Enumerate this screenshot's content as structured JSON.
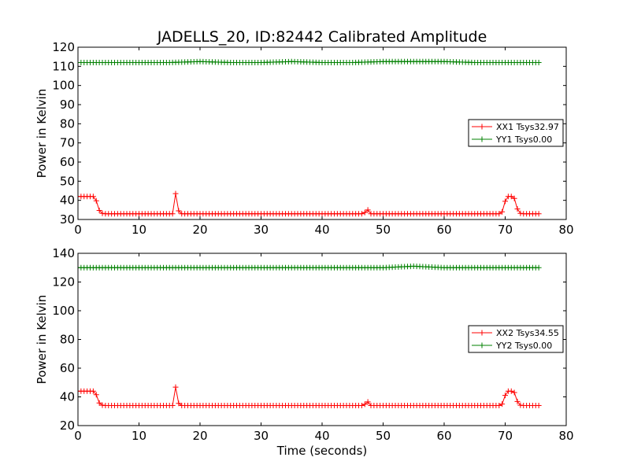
{
  "chart_data": [
    {
      "type": "line",
      "title": "JADELLS_20, ID:82442 Calibrated Amplitude",
      "xlabel": "",
      "ylabel": "Power in Kelvin",
      "xlim": [
        0,
        80
      ],
      "ylim": [
        30,
        120
      ],
      "xticks": [
        0,
        10,
        20,
        30,
        40,
        50,
        60,
        70,
        80
      ],
      "yticks": [
        30,
        40,
        50,
        60,
        70,
        80,
        90,
        100,
        110,
        120
      ],
      "grid": false,
      "legend_position": "right",
      "marker": "+",
      "series": [
        {
          "name": "XX1 Tsys32.97",
          "color": "#ff0000",
          "points": [
            [
              0,
              42
            ],
            [
              2.5,
              42
            ],
            [
              2.9,
              41
            ],
            [
              3.3,
              36
            ],
            [
              3.7,
              33.5
            ],
            [
              4.2,
              33
            ],
            [
              15.5,
              33
            ],
            [
              15.9,
              46
            ],
            [
              16.3,
              36
            ],
            [
              16.7,
              33
            ],
            [
              46.9,
              33
            ],
            [
              47.2,
              35
            ],
            [
              47.5,
              35
            ],
            [
              47.9,
              33
            ],
            [
              69.4,
              33
            ],
            [
              69.8,
              37
            ],
            [
              70.2,
              42
            ],
            [
              71.3,
              42
            ],
            [
              71.7,
              40
            ],
            [
              72.1,
              34
            ],
            [
              72.6,
              33
            ],
            [
              75.6,
              33
            ]
          ]
        },
        {
          "name": "YY1 Tsys0.00",
          "color": "#008000",
          "points": [
            [
              0,
              112
            ],
            [
              5,
              112
            ],
            [
              10,
              112
            ],
            [
              15,
              112
            ],
            [
              20,
              112.5
            ],
            [
              25,
              112
            ],
            [
              30,
              112
            ],
            [
              35,
              112.5
            ],
            [
              40,
              112
            ],
            [
              45,
              112
            ],
            [
              50,
              112.5
            ],
            [
              55,
              112.5
            ],
            [
              60,
              112.5
            ],
            [
              65,
              112
            ],
            [
              70,
              112
            ],
            [
              75.6,
              112
            ]
          ]
        }
      ]
    },
    {
      "type": "line",
      "title": "",
      "xlabel": "Time (seconds)",
      "ylabel": "Power in Kelvin",
      "xlim": [
        0,
        80
      ],
      "ylim": [
        20,
        140
      ],
      "xticks": [
        0,
        10,
        20,
        30,
        40,
        50,
        60,
        70,
        80
      ],
      "yticks": [
        20,
        40,
        60,
        80,
        100,
        120,
        140
      ],
      "grid": false,
      "legend_position": "right",
      "marker": "+",
      "series": [
        {
          "name": "XX2 Tsys34.55",
          "color": "#ff0000",
          "points": [
            [
              0,
              44
            ],
            [
              2.5,
              44
            ],
            [
              2.9,
              43
            ],
            [
              3.3,
              37
            ],
            [
              3.7,
              34.5
            ],
            [
              4.2,
              34
            ],
            [
              15.5,
              34
            ],
            [
              15.9,
              50
            ],
            [
              16.3,
              37
            ],
            [
              16.7,
              34
            ],
            [
              46.9,
              34
            ],
            [
              47.2,
              36.5
            ],
            [
              47.5,
              36.5
            ],
            [
              47.9,
              34
            ],
            [
              69.4,
              34
            ],
            [
              69.8,
              38
            ],
            [
              70.2,
              44
            ],
            [
              71.3,
              44
            ],
            [
              71.7,
              42
            ],
            [
              72.1,
              35
            ],
            [
              72.6,
              34
            ],
            [
              75.6,
              34
            ]
          ]
        },
        {
          "name": "YY2 Tsys0.00",
          "color": "#008000",
          "points": [
            [
              0,
              130
            ],
            [
              10,
              130
            ],
            [
              20,
              130
            ],
            [
              30,
              130
            ],
            [
              40,
              130
            ],
            [
              50,
              130
            ],
            [
              55,
              131
            ],
            [
              60,
              130
            ],
            [
              70,
              130
            ],
            [
              75.6,
              130
            ]
          ]
        }
      ]
    }
  ]
}
